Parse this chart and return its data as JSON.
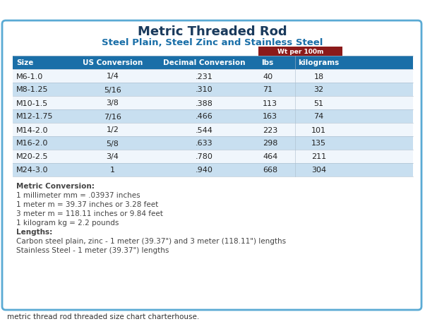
{
  "title": "Metric Threaded Rod",
  "subtitle": "Steel Plain, Steel Zinc and Stainless Steel",
  "wt_header": "Wt per 100m",
  "col_headers": [
    "Size",
    "US Conversion",
    "Decimal Conversion",
    "lbs",
    "kilograms"
  ],
  "table_rows": [
    [
      "M6-1.0",
      "1/4",
      ".231",
      "40",
      "18"
    ],
    [
      "M8-1.25",
      "5/16",
      ".310",
      "71",
      "32"
    ],
    [
      "M10-1.5",
      "3/8",
      ".388",
      "113",
      "51"
    ],
    [
      "M12-1.75",
      "7/16",
      ".466",
      "163",
      "74"
    ],
    [
      "M14-2.0",
      "1/2",
      ".544",
      "223",
      "101"
    ],
    [
      "M16-2.0",
      "5/8",
      ".633",
      "298",
      "135"
    ],
    [
      "M20-2.5",
      "3/4",
      ".780",
      "464",
      "211"
    ],
    [
      "M24-3.0",
      "1",
      ".940",
      "668",
      "304"
    ]
  ],
  "notes_bold_label": "Metric Conversion:",
  "notes_lines": [
    "1 millimeter mm = .03937 inches",
    "1 meter m = 39.37 inches or 3.28 feet",
    "3 meter m = 118.11 inches or 9.84 feet",
    "1 kilogram kg = 2.2 pounds"
  ],
  "lengths_bold_label": "Lengths:",
  "lengths_lines": [
    "Carbon steel plain, zinc - 1 meter (39.37\") and 3 meter (118.11\") lengths",
    "Stainless Steel - 1 meter (39.37\") lengths"
  ],
  "footer": "metric thread rod threaded size chart charterhouse.",
  "header_bg": "#1a6fa8",
  "header_text": "#ffffff",
  "wt_header_bg": "#8b1a1a",
  "alt_row_bg": "#c8dff0",
  "white_row_bg": "#f0f6fc",
  "border_color": "#5aaad4",
  "outer_bg": "#ffffff",
  "card_bg": "#ffffff",
  "title_color": "#1a3a5c",
  "subtitle_color": "#1a6fa8",
  "note_text_color": "#444444",
  "footer_color": "#333333"
}
